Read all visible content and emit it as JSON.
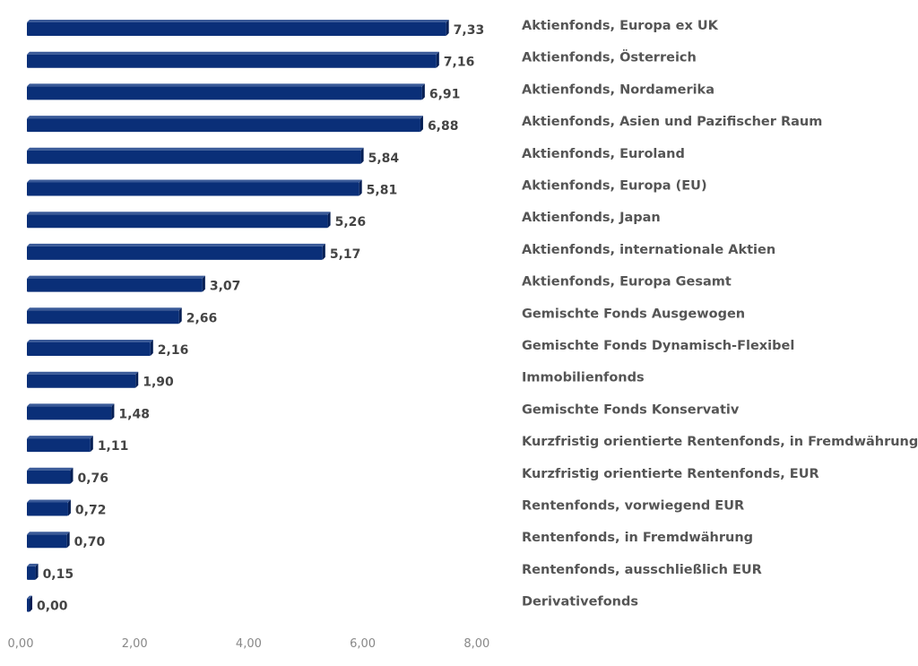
{
  "chart_data": {
    "type": "bar",
    "orientation": "horizontal",
    "categories": [
      "Aktienfonds, Europa ex UK",
      "Aktienfonds, Österreich",
      "Aktienfonds, Nordamerika",
      "Aktienfonds, Asien und Pazifischer Raum",
      "Aktienfonds, Euroland",
      "Aktienfonds, Europa (EU)",
      "Aktienfonds, Japan",
      "Aktienfonds, internationale Aktien",
      "Aktienfonds, Europa Gesamt",
      "Gemischte Fonds Ausgewogen",
      "Gemischte Fonds Dynamisch-Flexibel",
      "Immobilienfonds",
      "Gemischte Fonds Konservativ",
      "Kurzfristig orientierte Rentenfonds, in Fremdwährung",
      "Kurzfristig orientierte Rentenfonds,  EUR",
      "Rentenfonds, vorwiegend EUR",
      "Rentenfonds, in Fremdwährung",
      "Rentenfonds, ausschließlich EUR",
      "Derivativefonds"
    ],
    "values": [
      7.33,
      7.16,
      6.91,
      6.88,
      5.84,
      5.81,
      5.26,
      5.17,
      3.07,
      2.66,
      2.16,
      1.9,
      1.48,
      1.11,
      0.76,
      0.72,
      0.7,
      0.15,
      0.0
    ],
    "value_labels": [
      "7,33",
      "7,16",
      "6,91",
      "6,88",
      "5,84",
      "5,81",
      "5,26",
      "5,17",
      "3,07",
      "2,66",
      "2,16",
      "1,90",
      "1,48",
      "1,11",
      "0,76",
      "0,72",
      "0,70",
      "0,15",
      "0,00"
    ],
    "xlim": [
      0,
      8
    ],
    "x_ticks": [
      0,
      2,
      4,
      6,
      8
    ],
    "x_tick_labels": [
      "0,00",
      "2,00",
      "4,00",
      "6,00",
      "8,00"
    ],
    "grid": false,
    "title": "",
    "xlabel": "",
    "ylabel": "",
    "bar_color": "#0a2f78"
  }
}
